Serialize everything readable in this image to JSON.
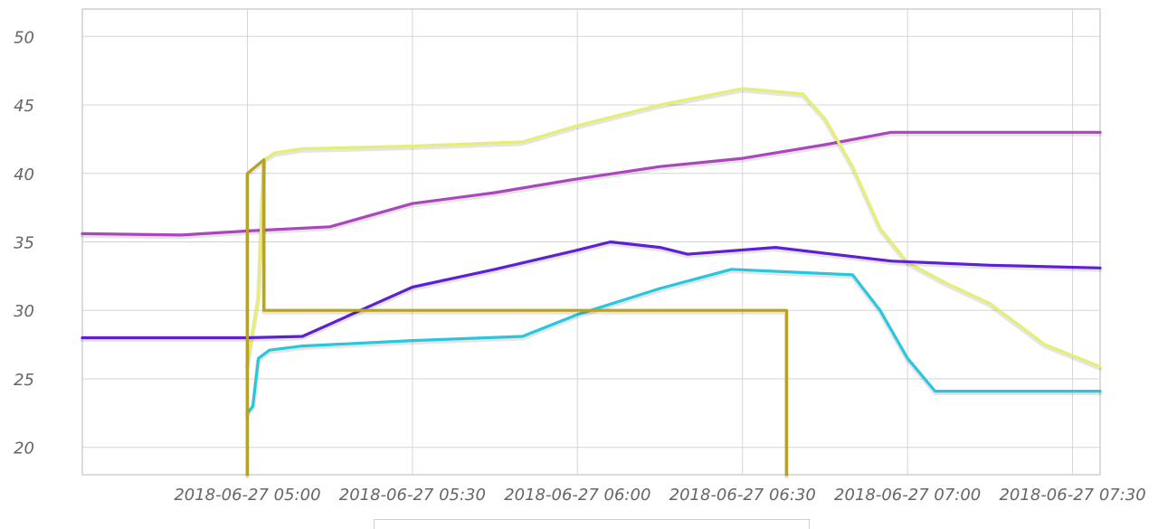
{
  "chart_data": {
    "type": "line",
    "title": "",
    "xlabel": "",
    "ylabel": "",
    "x_range": [
      "2018-06-27 04:30",
      "2018-06-27 07:35"
    ],
    "ylim": [
      18,
      52
    ],
    "y_ticks": [
      20,
      25,
      30,
      35,
      40,
      45,
      50
    ],
    "x_ticks": [
      "2018-06-27 05:00",
      "2018-06-27 05:30",
      "2018-06-27 06:00",
      "2018-06-27 06:30",
      "2018-06-27 07:00",
      "2018-06-27 07:30"
    ],
    "grid": true,
    "series": [
      {
        "color": "#ab47bc",
        "points": [
          [
            "2018-06-27 04:30",
            35.6
          ],
          [
            "2018-06-27 04:48",
            35.5
          ],
          [
            "2018-06-27 05:00",
            35.8
          ],
          [
            "2018-06-27 05:15",
            36.1
          ],
          [
            "2018-06-27 05:30",
            37.8
          ],
          [
            "2018-06-27 05:45",
            38.6
          ],
          [
            "2018-06-27 06:00",
            39.6
          ],
          [
            "2018-06-27 06:15",
            40.5
          ],
          [
            "2018-06-27 06:30",
            41.1
          ],
          [
            "2018-06-27 06:45",
            42.1
          ],
          [
            "2018-06-27 06:57",
            43.0
          ],
          [
            "2018-06-27 07:35",
            43.0
          ]
        ]
      },
      {
        "color": "#e6ee74",
        "points": [
          [
            "2018-06-27 05:00",
            26.0
          ],
          [
            "2018-06-27 05:02",
            31.0
          ],
          [
            "2018-06-27 05:03",
            41.0
          ],
          [
            "2018-06-27 05:05",
            41.5
          ],
          [
            "2018-06-27 05:10",
            41.8
          ],
          [
            "2018-06-27 05:30",
            42.0
          ],
          [
            "2018-06-27 05:50",
            42.3
          ],
          [
            "2018-06-27 06:00",
            43.5
          ],
          [
            "2018-06-27 06:15",
            45.0
          ],
          [
            "2018-06-27 06:30",
            46.2
          ],
          [
            "2018-06-27 06:41",
            45.8
          ],
          [
            "2018-06-27 06:45",
            44.0
          ],
          [
            "2018-06-27 06:50",
            40.5
          ],
          [
            "2018-06-27 06:55",
            36.0
          ],
          [
            "2018-06-27 07:00",
            33.5
          ],
          [
            "2018-06-27 07:07",
            32.0
          ],
          [
            "2018-06-27 07:15",
            30.5
          ],
          [
            "2018-06-27 07:25",
            27.5
          ],
          [
            "2018-06-27 07:35",
            25.9
          ]
        ]
      },
      {
        "color": "#5e1fd6",
        "points": [
          [
            "2018-06-27 04:30",
            28.0
          ],
          [
            "2018-06-27 05:00",
            28.0
          ],
          [
            "2018-06-27 05:10",
            28.1
          ],
          [
            "2018-06-27 05:15",
            29.0
          ],
          [
            "2018-06-27 05:25",
            30.8
          ],
          [
            "2018-06-27 05:30",
            31.7
          ],
          [
            "2018-06-27 05:45",
            33.0
          ],
          [
            "2018-06-27 06:00",
            34.4
          ],
          [
            "2018-06-27 06:06",
            35.0
          ],
          [
            "2018-06-27 06:15",
            34.6
          ],
          [
            "2018-06-27 06:20",
            34.1
          ],
          [
            "2018-06-27 06:36",
            34.6
          ],
          [
            "2018-06-27 06:57",
            33.6
          ],
          [
            "2018-06-27 07:15",
            33.3
          ],
          [
            "2018-06-27 07:35",
            33.1
          ]
        ]
      },
      {
        "color": "#29c6e0",
        "points": [
          [
            "2018-06-27 05:00",
            22.5
          ],
          [
            "2018-06-27 05:01",
            23.0
          ],
          [
            "2018-06-27 05:02",
            26.5
          ],
          [
            "2018-06-27 05:04",
            27.1
          ],
          [
            "2018-06-27 05:10",
            27.4
          ],
          [
            "2018-06-27 05:30",
            27.8
          ],
          [
            "2018-06-27 05:50",
            28.1
          ],
          [
            "2018-06-27 06:00",
            29.7
          ],
          [
            "2018-06-27 06:15",
            31.6
          ],
          [
            "2018-06-27 06:28",
            33.0
          ],
          [
            "2018-06-27 06:50",
            32.6
          ],
          [
            "2018-06-27 06:55",
            30.0
          ],
          [
            "2018-06-27 07:00",
            26.5
          ],
          [
            "2018-06-27 07:05",
            24.1
          ],
          [
            "2018-06-27 07:35",
            24.1
          ]
        ]
      },
      {
        "color": "#b5a227",
        "points": [
          [
            "2018-06-27 05:00",
            18.0
          ],
          [
            "2018-06-27 05:00",
            40.0
          ],
          [
            "2018-06-27 05:03",
            41.0
          ],
          [
            "2018-06-27 05:03",
            30.0
          ],
          [
            "2018-06-27 06:38",
            30.0
          ],
          [
            "2018-06-27 06:38",
            18.0
          ]
        ]
      }
    ]
  }
}
